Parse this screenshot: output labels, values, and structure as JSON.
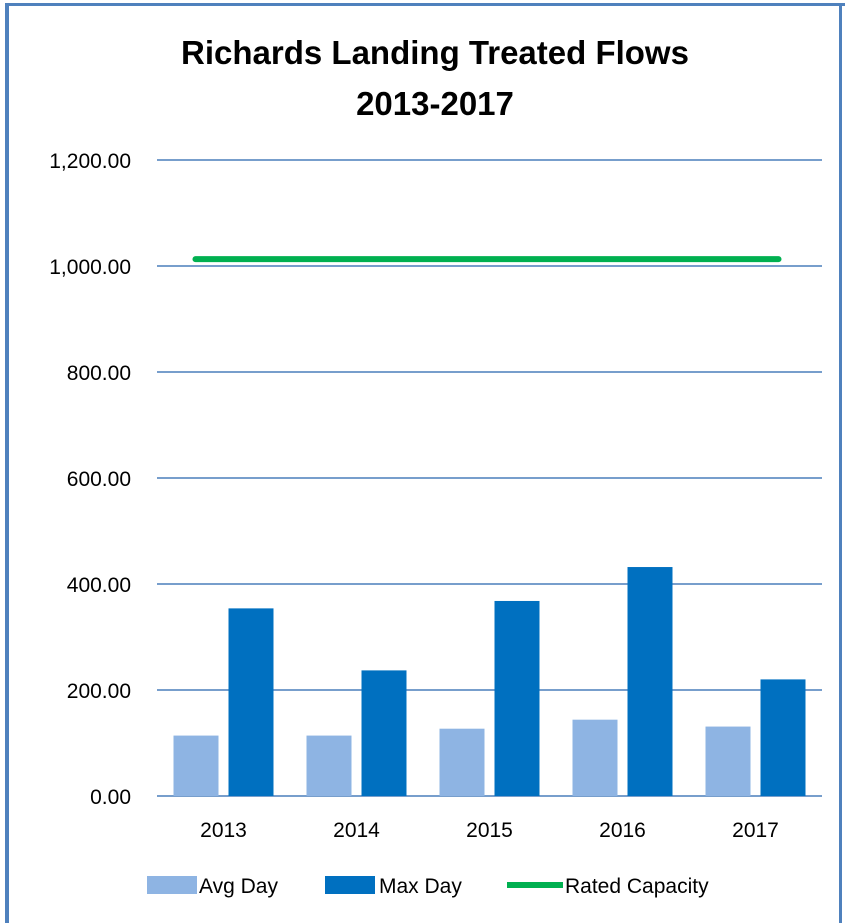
{
  "chart_data": {
    "type": "bar",
    "title_line1": "Richards Landing Treated Flows",
    "title_line2": "2013-2017",
    "categories": [
      "2013",
      "2014",
      "2015",
      "2016",
      "2017"
    ],
    "series": [
      {
        "name": "Avg Day",
        "type": "bar",
        "color": "#8eb4e3",
        "values": [
          114,
          114,
          127,
          144,
          131
        ]
      },
      {
        "name": "Max Day",
        "type": "bar",
        "color": "#0070c0",
        "values": [
          354,
          237,
          368,
          432,
          220
        ]
      },
      {
        "name": "Rated Capacity",
        "type": "line",
        "color": "#00b050",
        "values": [
          1013,
          1013,
          1013,
          1013,
          1013
        ]
      }
    ],
    "ylim": [
      0,
      1200
    ],
    "yticks": [
      0,
      200,
      400,
      600,
      800,
      1000,
      1200
    ],
    "ytick_labels": [
      "0.00",
      "200.00",
      "400.00",
      "600.00",
      "800.00",
      "1,000.00",
      "1,200.00"
    ],
    "grid": true,
    "legend_position": "bottom",
    "gridline_color": "#4a7ebb"
  }
}
